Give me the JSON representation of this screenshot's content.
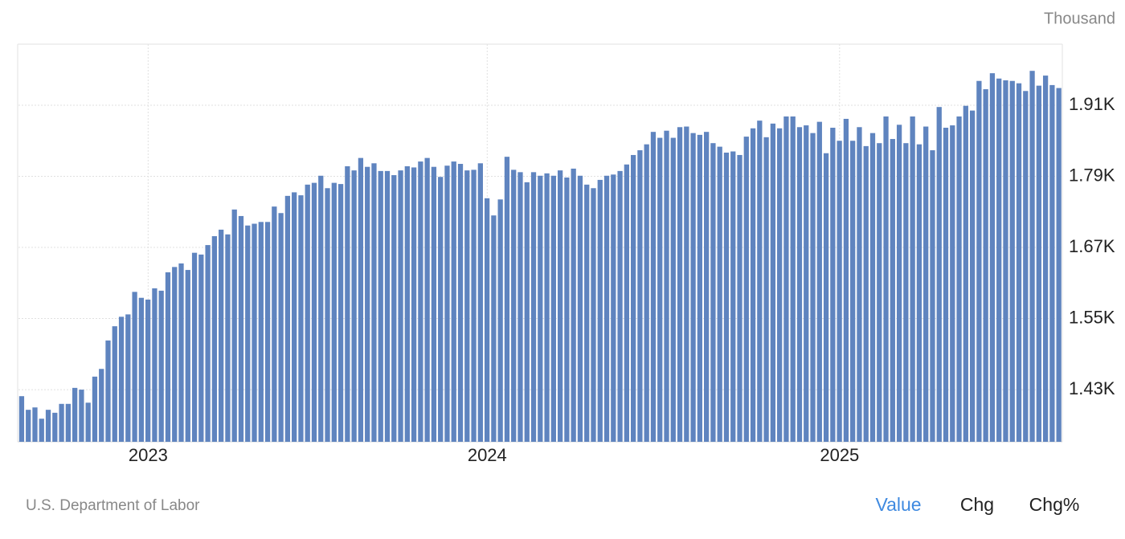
{
  "chart_data": {
    "type": "bar",
    "unit_label": "Thousand",
    "source": "U.S. Department of Labor",
    "tabs": [
      "Value",
      "Chg",
      "Chg%"
    ],
    "color": "#5f84bf",
    "grid": true,
    "ylim": [
      1342,
      2013
    ],
    "yticks": [
      {
        "value": 1430,
        "label": "1.43K"
      },
      {
        "value": 1550,
        "label": "1.55K"
      },
      {
        "value": 1670,
        "label": "1.67K"
      },
      {
        "value": 1790,
        "label": "1.79K"
      },
      {
        "value": 1910,
        "label": "1.91K"
      }
    ],
    "categories": [
      null,
      null,
      null,
      null,
      null,
      null,
      null,
      null,
      null,
      null,
      null,
      null,
      null,
      null,
      null,
      null,
      null,
      null,
      null,
      "2023",
      null,
      null,
      null,
      null,
      null,
      null,
      null,
      null,
      null,
      null,
      null,
      null,
      null,
      null,
      null,
      null,
      null,
      null,
      null,
      null,
      null,
      null,
      null,
      null,
      null,
      null,
      null,
      null,
      null,
      null,
      null,
      null,
      null,
      null,
      null,
      null,
      null,
      null,
      null,
      null,
      null,
      null,
      null,
      null,
      null,
      null,
      null,
      null,
      null,
      null,
      "2024",
      null,
      null,
      null,
      null,
      null,
      null,
      null,
      null,
      null,
      null,
      null,
      null,
      null,
      null,
      null,
      null,
      null,
      null,
      null,
      null,
      null,
      null,
      null,
      null,
      null,
      null,
      null,
      null,
      null,
      null,
      null,
      null,
      null,
      null,
      null,
      null,
      null,
      null,
      null,
      null,
      null,
      null,
      null,
      null,
      null,
      null,
      null,
      null,
      null,
      null,
      null,
      null,
      "2025",
      null,
      null,
      null,
      null,
      null,
      null,
      null,
      null,
      null,
      null,
      null,
      null,
      null,
      null,
      null,
      null,
      null,
      null,
      null,
      null,
      null,
      null,
      null,
      null,
      null,
      null,
      null,
      null,
      null,
      null,
      null,
      null,
      null
    ],
    "values": [
      1419,
      1396,
      1400,
      1381,
      1396,
      1391,
      1406,
      1406,
      1433,
      1430,
      1408,
      1452,
      1465,
      1513,
      1537,
      1553,
      1557,
      1595,
      1585,
      1582,
      1601,
      1597,
      1628,
      1637,
      1643,
      1632,
      1661,
      1658,
      1674,
      1689,
      1700,
      1692,
      1734,
      1723,
      1707,
      1710,
      1713,
      1713,
      1739,
      1728,
      1757,
      1763,
      1758,
      1776,
      1779,
      1791,
      1770,
      1779,
      1777,
      1807,
      1800,
      1821,
      1806,
      1812,
      1799,
      1799,
      1792,
      1800,
      1807,
      1805,
      1815,
      1821,
      1806,
      1789,
      1808,
      1815,
      1811,
      1800,
      1801,
      1812,
      1753,
      1724,
      1751,
      1823,
      1801,
      1797,
      1780,
      1797,
      1791,
      1795,
      1791,
      1800,
      1788,
      1803,
      1791,
      1776,
      1770,
      1784,
      1791,
      1793,
      1799,
      1810,
      1826,
      1834,
      1844,
      1865,
      1855,
      1867,
      1855,
      1873,
      1874,
      1863,
      1860,
      1865,
      1846,
      1840,
      1830,
      1832,
      1826,
      1857,
      1871,
      1884,
      1856,
      1879,
      1871,
      1891,
      1891,
      1873,
      1876,
      1863,
      1882,
      1829,
      1872,
      1850,
      1887,
      1850,
      1873,
      1841,
      1863,
      1846,
      1891,
      1853,
      1877,
      1846,
      1891,
      1844,
      1874,
      1834,
      1907,
      1872,
      1876,
      1891,
      1909,
      1901,
      1951,
      1937,
      1964,
      1955,
      1952,
      1951,
      1947,
      1934,
      1968,
      1943,
      1960,
      1944,
      1939
    ]
  }
}
